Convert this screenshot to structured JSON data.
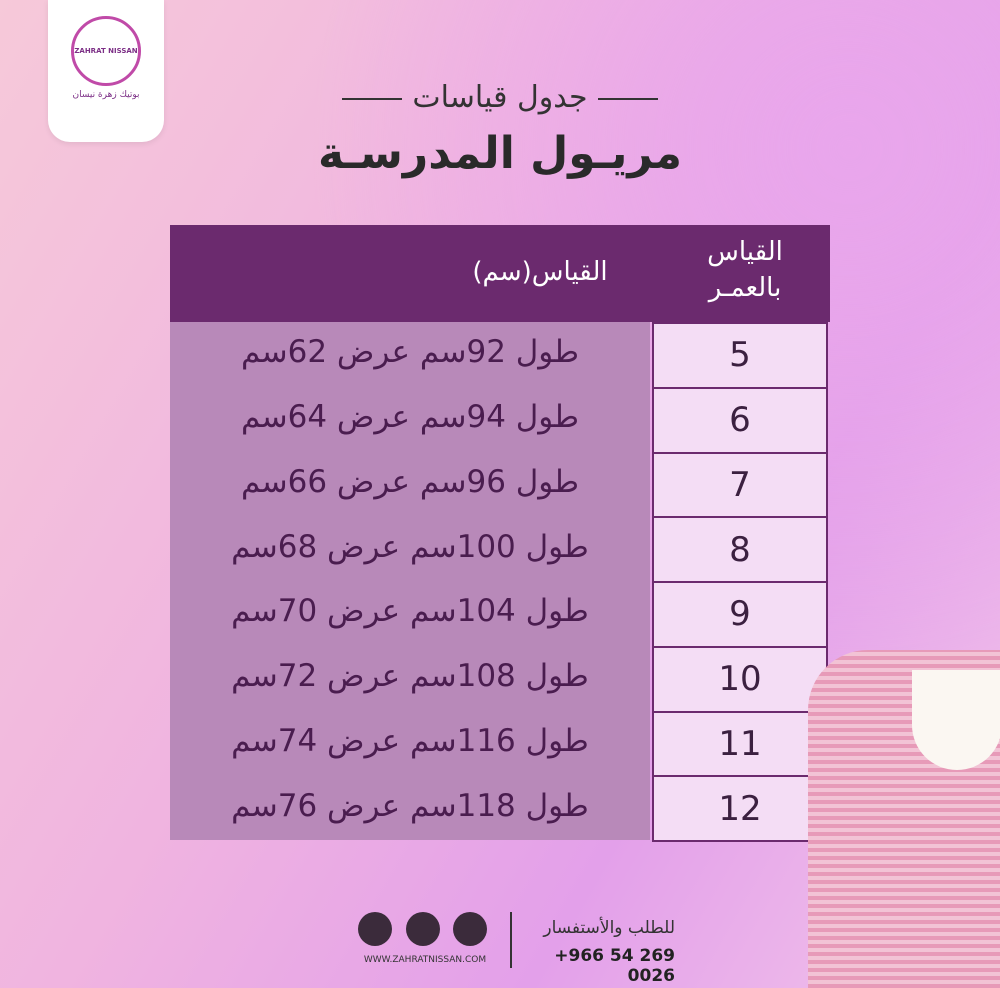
{
  "logo": {
    "brand": "ZAHRAT NISSAN",
    "tagline": "بوتيك زهرة نيسان"
  },
  "header": {
    "subtitle": "جدول قياسات",
    "title": "مريـول المدرسـة"
  },
  "table": {
    "headers": {
      "age": [
        "القياس",
        "بالعمـر"
      ],
      "measure": "القياس(سم)"
    },
    "rows": [
      [
        "5",
        "طول 92سم عرض 62سم"
      ],
      [
        "6",
        "طول 94سم عرض 64سم"
      ],
      [
        "7",
        "طول 96سم عرض 66سم"
      ],
      [
        "8",
        "طول 100سم عرض 68سم"
      ],
      [
        "9",
        "طول 104سم عرض 70سم"
      ],
      [
        "10",
        "طول 108سم عرض 72سم"
      ],
      [
        "11",
        "طول 116سم عرض 74سم"
      ],
      [
        "12",
        "طول 118سم عرض 76سم"
      ]
    ]
  },
  "footer": {
    "label": "للطلب والأستفسار",
    "phone": "+966 54 269 0026",
    "website": "WWW.ZAHRATNISSAN.COM"
  }
}
